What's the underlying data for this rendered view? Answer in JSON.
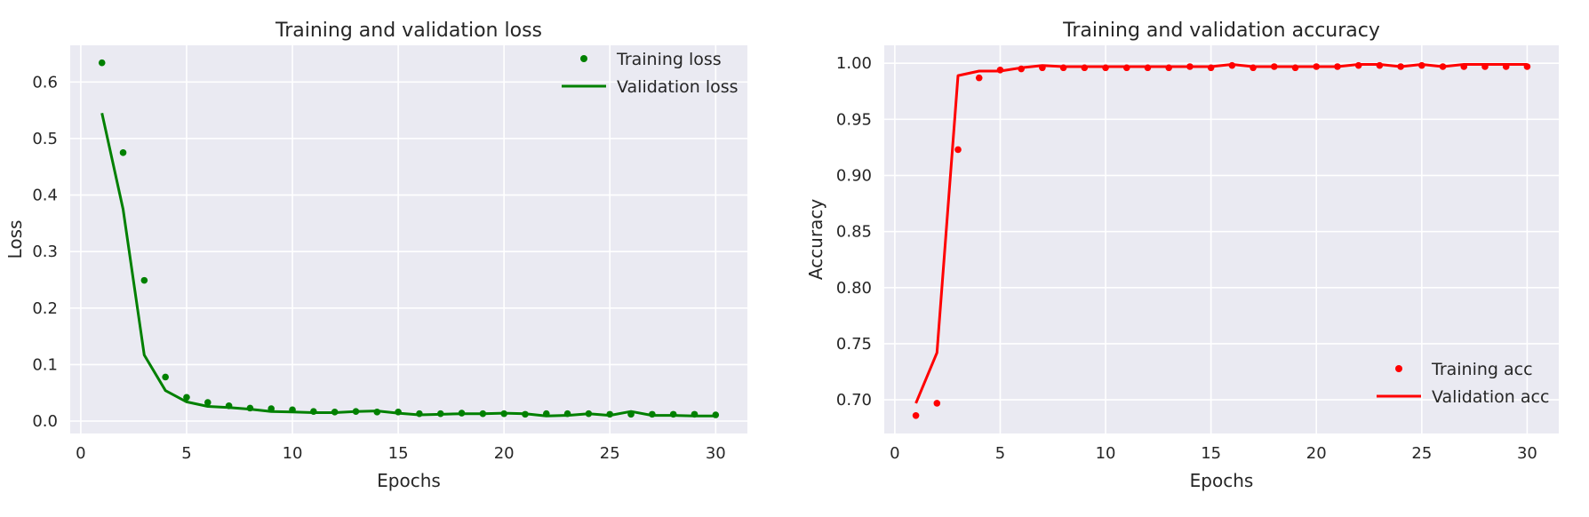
{
  "chart_data": [
    {
      "type": "line",
      "title": "Training and validation loss",
      "xlabel": "Epochs",
      "ylabel": "Loss",
      "xlim": [
        -0.5,
        31.5
      ],
      "ylim": [
        -0.022,
        0.665
      ],
      "xticks": [
        0,
        5,
        10,
        15,
        20,
        25,
        30
      ],
      "xtick_labels": [
        "0",
        "5",
        "10",
        "15",
        "20",
        "25",
        "30"
      ],
      "yticks": [
        0.0,
        0.1,
        0.2,
        0.3,
        0.4,
        0.5,
        0.6
      ],
      "ytick_labels": [
        "0.0",
        "0.1",
        "0.2",
        "0.3",
        "0.4",
        "0.5",
        "0.6"
      ],
      "grid": true,
      "legend_position": "upper-right",
      "color": "#008000",
      "x": [
        1,
        2,
        3,
        4,
        5,
        6,
        7,
        8,
        9,
        10,
        11,
        12,
        13,
        14,
        15,
        16,
        17,
        18,
        19,
        20,
        21,
        22,
        23,
        24,
        25,
        26,
        27,
        28,
        29,
        30
      ],
      "series": [
        {
          "name": "Training loss",
          "style": "points",
          "values": [
            0.634,
            0.475,
            0.249,
            0.078,
            0.042,
            0.033,
            0.027,
            0.023,
            0.022,
            0.02,
            0.017,
            0.016,
            0.017,
            0.016,
            0.016,
            0.013,
            0.013,
            0.014,
            0.013,
            0.013,
            0.012,
            0.013,
            0.013,
            0.013,
            0.012,
            0.012,
            0.012,
            0.012,
            0.012,
            0.011
          ]
        },
        {
          "name": "Validation loss",
          "style": "line",
          "values": [
            0.545,
            0.375,
            0.117,
            0.054,
            0.034,
            0.026,
            0.024,
            0.021,
            0.017,
            0.016,
            0.015,
            0.015,
            0.017,
            0.018,
            0.014,
            0.011,
            0.012,
            0.013,
            0.013,
            0.014,
            0.013,
            0.009,
            0.01,
            0.013,
            0.01,
            0.017,
            0.01,
            0.01,
            0.009,
            0.009
          ]
        }
      ]
    },
    {
      "type": "line",
      "title": "Training and validation accuracy",
      "xlabel": "Epochs",
      "ylabel": "Accuracy",
      "xlim": [
        -0.5,
        31.5
      ],
      "ylim": [
        0.67,
        1.016
      ],
      "xticks": [
        0,
        5,
        10,
        15,
        20,
        25,
        30
      ],
      "xtick_labels": [
        "0",
        "5",
        "10",
        "15",
        "20",
        "25",
        "30"
      ],
      "yticks": [
        0.7,
        0.75,
        0.8,
        0.85,
        0.9,
        0.95,
        1.0
      ],
      "ytick_labels": [
        "0.70",
        "0.75",
        "0.80",
        "0.85",
        "0.90",
        "0.95",
        "1.00"
      ],
      "grid": true,
      "legend_position": "lower-right",
      "color": "#ff0000",
      "x": [
        1,
        2,
        3,
        4,
        5,
        6,
        7,
        8,
        9,
        10,
        11,
        12,
        13,
        14,
        15,
        16,
        17,
        18,
        19,
        20,
        21,
        22,
        23,
        24,
        25,
        26,
        27,
        28,
        29,
        30
      ],
      "series": [
        {
          "name": "Training acc",
          "style": "points",
          "values": [
            0.686,
            0.697,
            0.923,
            0.987,
            0.994,
            0.995,
            0.996,
            0.996,
            0.996,
            0.996,
            0.996,
            0.996,
            0.996,
            0.997,
            0.996,
            0.998,
            0.996,
            0.997,
            0.996,
            0.997,
            0.997,
            0.998,
            0.998,
            0.997,
            0.998,
            0.997,
            0.997,
            0.997,
            0.997,
            0.997
          ]
        },
        {
          "name": "Validation acc",
          "style": "line",
          "values": [
            0.697,
            0.742,
            0.989,
            0.993,
            0.993,
            0.996,
            0.998,
            0.997,
            0.997,
            0.997,
            0.997,
            0.997,
            0.997,
            0.997,
            0.997,
            0.999,
            0.997,
            0.997,
            0.997,
            0.997,
            0.997,
            0.999,
            0.999,
            0.997,
            0.999,
            0.997,
            0.999,
            0.999,
            0.999,
            0.999
          ]
        }
      ]
    }
  ]
}
